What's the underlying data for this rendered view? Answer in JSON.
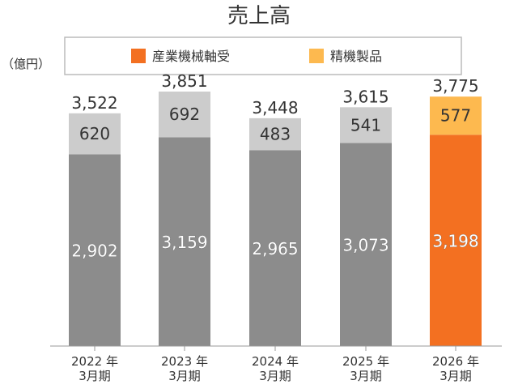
{
  "chart_data": {
    "type": "bar",
    "stacked": true,
    "title": "売上高",
    "unit_label": "（億円）",
    "categories": [
      [
        "2022 年",
        "3月期"
      ],
      [
        "2023 年",
        "3月期"
      ],
      [
        "2024 年",
        "3月期"
      ],
      [
        "2025 年",
        "3月期"
      ],
      [
        "2026 年",
        "3月期"
      ]
    ],
    "series": [
      {
        "name": "産業機械軸受",
        "values": [
          2902,
          3159,
          2965,
          3073,
          3198
        ],
        "labels": [
          "2,902",
          "3,159",
          "2,965",
          "3,073",
          "3,198"
        ]
      },
      {
        "name": "精機製品",
        "values": [
          620,
          692,
          483,
          541,
          577
        ],
        "labels": [
          "620",
          "692",
          "483",
          "541",
          "577"
        ]
      }
    ],
    "totals": [
      3522,
      3851,
      3448,
      3615,
      3775
    ],
    "total_labels": [
      "3,522",
      "3,851",
      "3,448",
      "3,615",
      "3,775"
    ],
    "ylim": [
      0,
      3851
    ],
    "grid": false,
    "legend_position": "top",
    "colors": {
      "legend": [
        "#F37021",
        "#FDB94F"
      ],
      "base_bar": "#8C8C8C",
      "top_bar": "#CCCCCC",
      "highlight_base": "#F37021",
      "highlight_top": "#FDB94F",
      "base_label": "#FFFFFF",
      "top_label": "#333333"
    },
    "highlight_index": 4
  }
}
